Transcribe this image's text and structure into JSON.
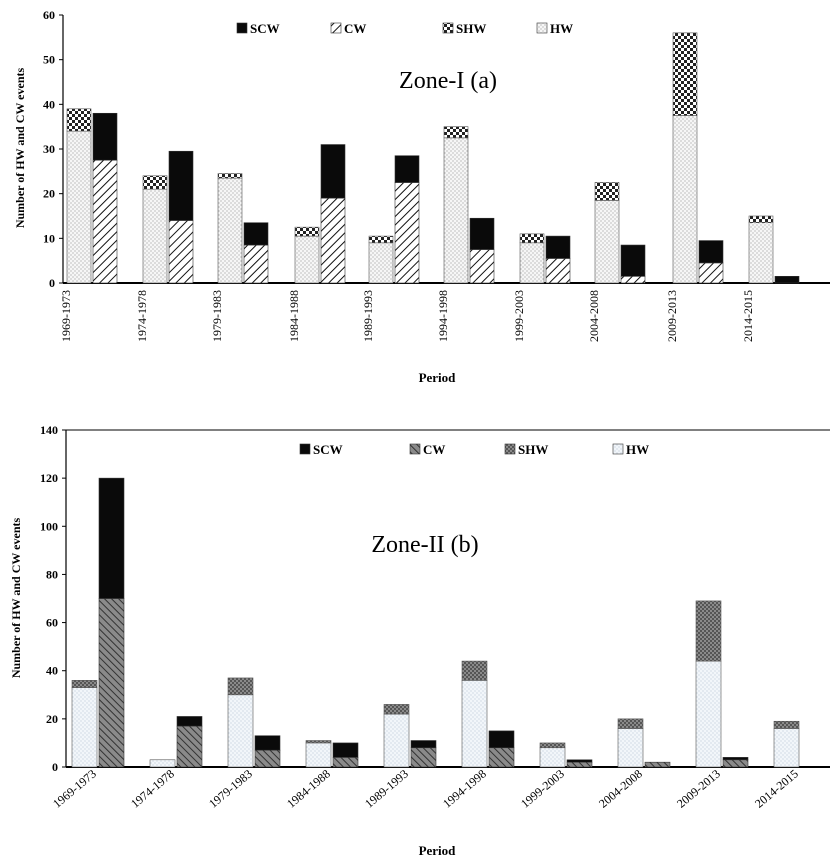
{
  "colors": {
    "HW": "#f4f4f4",
    "SHW": "#ffffff",
    "CW": "#ffffff",
    "SCW": "#0a0a0a",
    "axis": "#000000"
  },
  "patterns": {
    "HW": "dots",
    "SHW": "checker",
    "CW": "diagonal",
    "SCW": "solid"
  },
  "chart_data": [
    {
      "type": "bar",
      "stacked": true,
      "title": "Zone-I (a)",
      "xlabel": "Period",
      "ylabel": "Number of HW and CW events",
      "ylim": [
        0,
        60
      ],
      "yticks": [
        0,
        10,
        20,
        30,
        40,
        50,
        60
      ],
      "grid": false,
      "legend_position": "top",
      "legend": [
        {
          "key": "SCW",
          "label": "SCW"
        },
        {
          "key": "CW",
          "label": "CW"
        },
        {
          "key": "SHW",
          "label": "SHW"
        },
        {
          "key": "HW",
          "label": "HW"
        }
      ],
      "categories": [
        "1969-1973",
        "1974-1978",
        "1979-1983",
        "1984-1988",
        "1989-1993",
        "1994-1998",
        "1999-2003",
        "2004-2008",
        "2009-2013",
        "2014-2015"
      ],
      "heat_series": [
        {
          "name": "HW",
          "values": [
            34,
            21,
            23.5,
            10.5,
            9,
            32.5,
            9,
            18.5,
            37.5,
            13.5
          ]
        },
        {
          "name": "SHW",
          "values": [
            5,
            3,
            1,
            2,
            1.5,
            2.5,
            2,
            4,
            18.5,
            1.5
          ]
        }
      ],
      "cold_series": [
        {
          "name": "CW",
          "values": [
            27.5,
            14,
            8.5,
            19,
            22.5,
            7.5,
            5.5,
            1.5,
            4.5,
            0
          ]
        },
        {
          "name": "SCW",
          "values": [
            10.5,
            15.5,
            5,
            12,
            6,
            7,
            5,
            7,
            5,
            1.5
          ]
        }
      ]
    },
    {
      "type": "bar",
      "stacked": true,
      "title": "Zone-II (b)",
      "xlabel": "Period",
      "ylabel": "Number of HW and CW events",
      "ylim": [
        0,
        140
      ],
      "yticks": [
        0,
        20,
        40,
        60,
        80,
        100,
        120,
        140
      ],
      "grid": false,
      "legend_position": "top",
      "legend": [
        {
          "key": "SCW",
          "label": "SCW"
        },
        {
          "key": "CW",
          "label": "CW"
        },
        {
          "key": "SHW",
          "label": "SHW"
        },
        {
          "key": "HW",
          "label": "HW"
        }
      ],
      "categories": [
        "1969-1973",
        "1974-1978",
        "1979-1983",
        "1984-1988",
        "1989-1993",
        "1994-1998",
        "1999-2003",
        "2004-2008",
        "2009-2013",
        "2014-2015"
      ],
      "heat_series": [
        {
          "name": "HW",
          "values": [
            33,
            3,
            30,
            10,
            22,
            36,
            8,
            16,
            44,
            16
          ]
        },
        {
          "name": "SHW",
          "values": [
            3,
            0,
            7,
            1,
            4,
            8,
            2,
            4,
            25,
            3
          ]
        }
      ],
      "cold_series": [
        {
          "name": "CW",
          "values": [
            70,
            17,
            7,
            4,
            8,
            8,
            2,
            2,
            3,
            0
          ]
        },
        {
          "name": "SCW",
          "values": [
            50,
            4,
            6,
            6,
            3,
            7,
            1,
            0,
            1,
            0
          ]
        }
      ]
    }
  ]
}
